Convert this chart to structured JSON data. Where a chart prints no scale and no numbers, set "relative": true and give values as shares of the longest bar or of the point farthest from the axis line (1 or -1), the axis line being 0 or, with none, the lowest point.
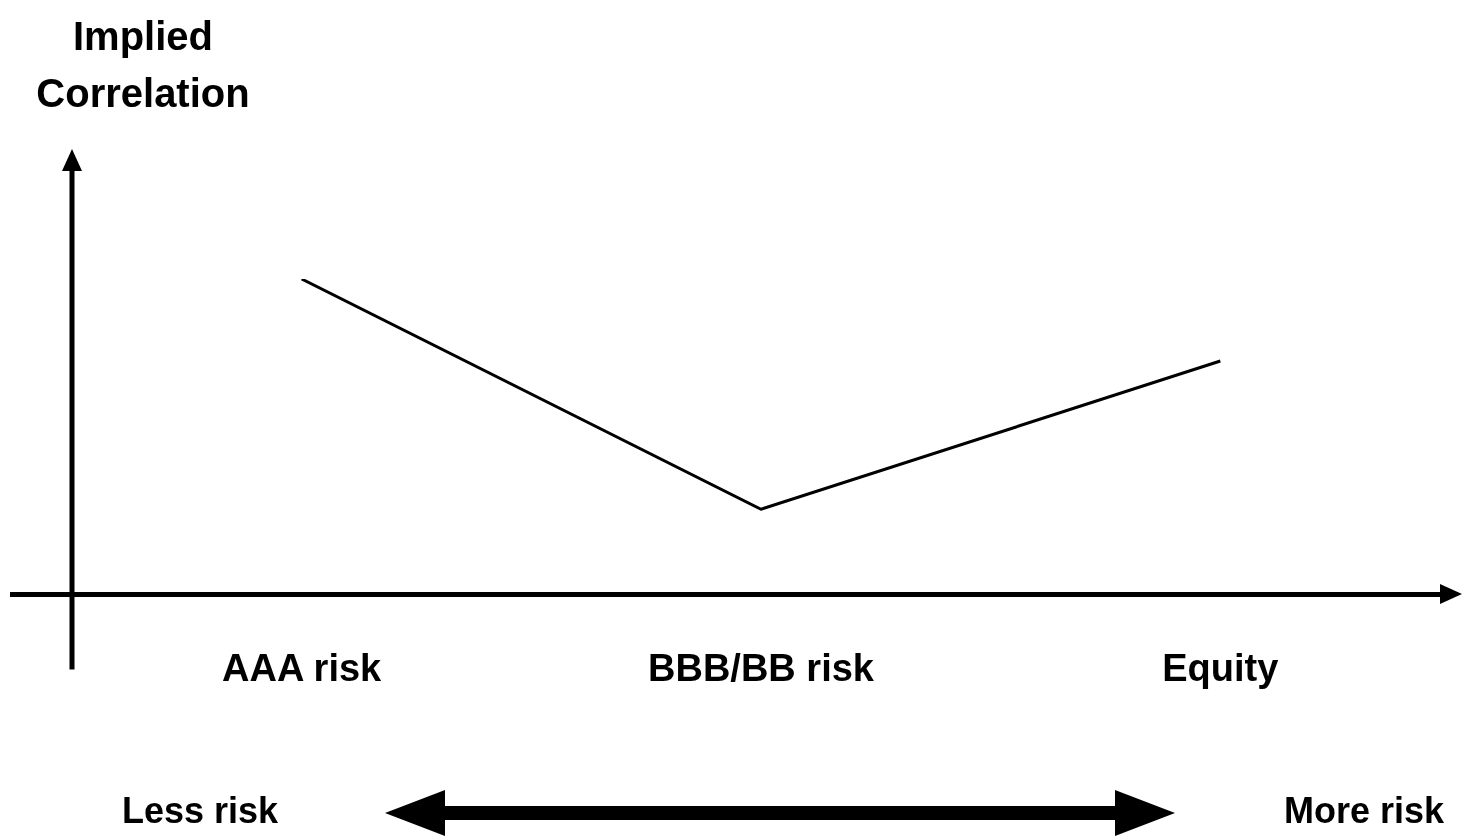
{
  "chart_data": {
    "type": "line",
    "relative": true,
    "ylabel": "Implied Correlation",
    "color": "#000000",
    "categories": [
      "AAA risk",
      "BBB/BB risk",
      "Equity"
    ],
    "values": [
      1,
      0.27,
      0.74
    ],
    "annotations": [
      "Less risk",
      "More risk"
    ]
  }
}
